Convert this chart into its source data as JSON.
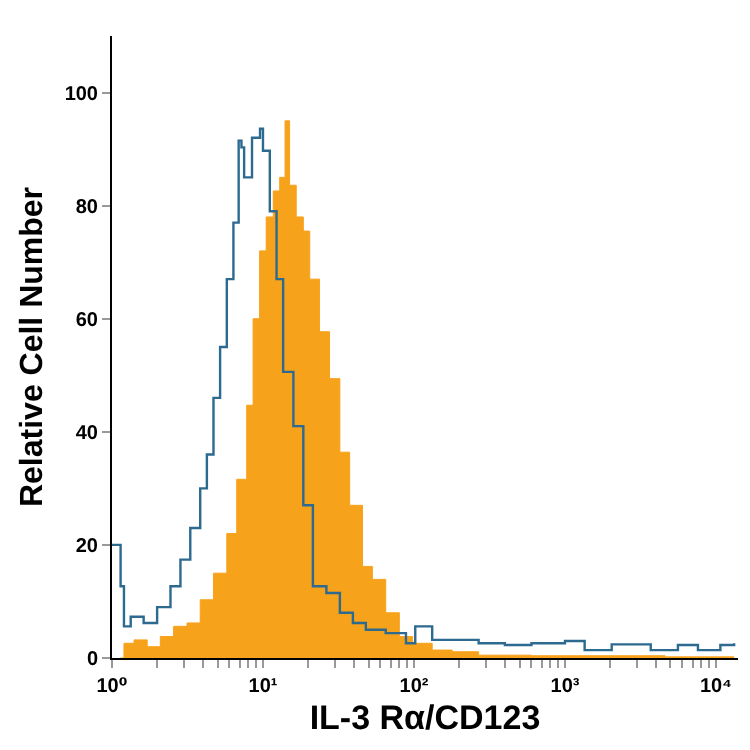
{
  "chart_data": {
    "type": "area",
    "xlabel": "IL-3 Rα/CD123",
    "ylabel": "Relative Cell Number",
    "log": "x",
    "xlim": [
      1,
      14000
    ],
    "ylim": [
      0,
      110
    ],
    "yticks": [
      0,
      20,
      40,
      60,
      80,
      100
    ],
    "xticks": [
      {
        "value": 1,
        "label": "10⁰"
      },
      {
        "value": 2,
        "label": null
      },
      {
        "value": 3,
        "label": null
      },
      {
        "value": 4,
        "label": null
      },
      {
        "value": 5,
        "label": null
      },
      {
        "value": 6,
        "label": null
      },
      {
        "value": 7,
        "label": null
      },
      {
        "value": 8,
        "label": null
      },
      {
        "value": 9,
        "label": null
      },
      {
        "value": 10,
        "label": "10¹"
      },
      {
        "value": 20,
        "label": null
      },
      {
        "value": 30,
        "label": null
      },
      {
        "value": 40,
        "label": null
      },
      {
        "value": 50,
        "label": null
      },
      {
        "value": 60,
        "label": null
      },
      {
        "value": 70,
        "label": null
      },
      {
        "value": 80,
        "label": null
      },
      {
        "value": 90,
        "label": null
      },
      {
        "value": 100,
        "label": "10²"
      },
      {
        "value": 200,
        "label": null
      },
      {
        "value": 300,
        "label": null
      },
      {
        "value": 400,
        "label": null
      },
      {
        "value": 500,
        "label": null
      },
      {
        "value": 600,
        "label": null
      },
      {
        "value": 700,
        "label": null
      },
      {
        "value": 800,
        "label": null
      },
      {
        "value": 900,
        "label": null
      },
      {
        "value": 1000,
        "label": "10³"
      },
      {
        "value": 2000,
        "label": null
      },
      {
        "value": 3000,
        "label": null
      },
      {
        "value": 4000,
        "label": null
      },
      {
        "value": 5000,
        "label": null
      },
      {
        "value": 6000,
        "label": null
      },
      {
        "value": 7000,
        "label": null
      },
      {
        "value": 8000,
        "label": null
      },
      {
        "value": 9000,
        "label": null
      },
      {
        "value": 10000,
        "label": "10⁴"
      }
    ],
    "grid": false,
    "marker": "none",
    "series": [
      {
        "color": "#f7a21b",
        "x": [
          1.14,
          1.2,
          1.4,
          1.71,
          2.09,
          2.56,
          3.14,
          3.84,
          4.7,
          5.76,
          6.7,
          7.8,
          8.6,
          9.5,
          10.5,
          11.7,
          12.9,
          14,
          15,
          16.6,
          18.5,
          20.4,
          23.7,
          27.6,
          32.3,
          37.5,
          45.6,
          53,
          65,
          80,
          98,
          132,
          179,
          268,
          600,
          4600,
          13200
        ],
        "values": [
          0,
          2.6,
          3.2,
          2,
          3.8,
          5.6,
          6.2,
          10.3,
          15,
          22,
          31.6,
          44.7,
          60,
          72,
          78,
          82.6,
          85,
          95,
          83.6,
          78,
          75.5,
          67,
          57.7,
          49.4,
          36.4,
          27,
          16.2,
          13.9,
          8,
          3.8,
          2.6,
          1.4,
          1.1,
          0.5,
          0.4,
          0.2,
          0.2
        ]
      },
      {
        "type": "step",
        "color": "#2d6a8f",
        "x": [
          1,
          1.08,
          1.14,
          1.2,
          1.33,
          1.62,
          1.99,
          2.44,
          2.84,
          3.3,
          3.84,
          4.25,
          4.7,
          5.2,
          5.76,
          6.37,
          6.9,
          7.2,
          7.5,
          8.46,
          9.56,
          10,
          11.1,
          12.3,
          13.6,
          15.9,
          18.5,
          21.4,
          26.3,
          32.3,
          39.4,
          48,
          65,
          88.5,
          102,
          132,
          179,
          268,
          400,
          600,
          1000,
          1350,
          2040,
          3700,
          5600,
          7600,
          10700,
          13200
        ],
        "values": [
          20,
          20,
          12.7,
          5.6,
          7.3,
          6.2,
          9,
          12.7,
          17.4,
          23,
          30,
          36,
          46,
          55,
          67,
          77,
          91.5,
          90.3,
          85,
          92,
          93.6,
          89.7,
          79,
          67,
          50.6,
          41,
          27,
          12.7,
          11.5,
          8,
          6.2,
          5,
          4.4,
          2.6,
          5.6,
          3.2,
          3.2,
          2.6,
          2.3,
          2.6,
          3,
          1.4,
          2.4,
          1.4,
          2.3,
          1.4,
          2.3,
          2.6
        ]
      }
    ]
  }
}
